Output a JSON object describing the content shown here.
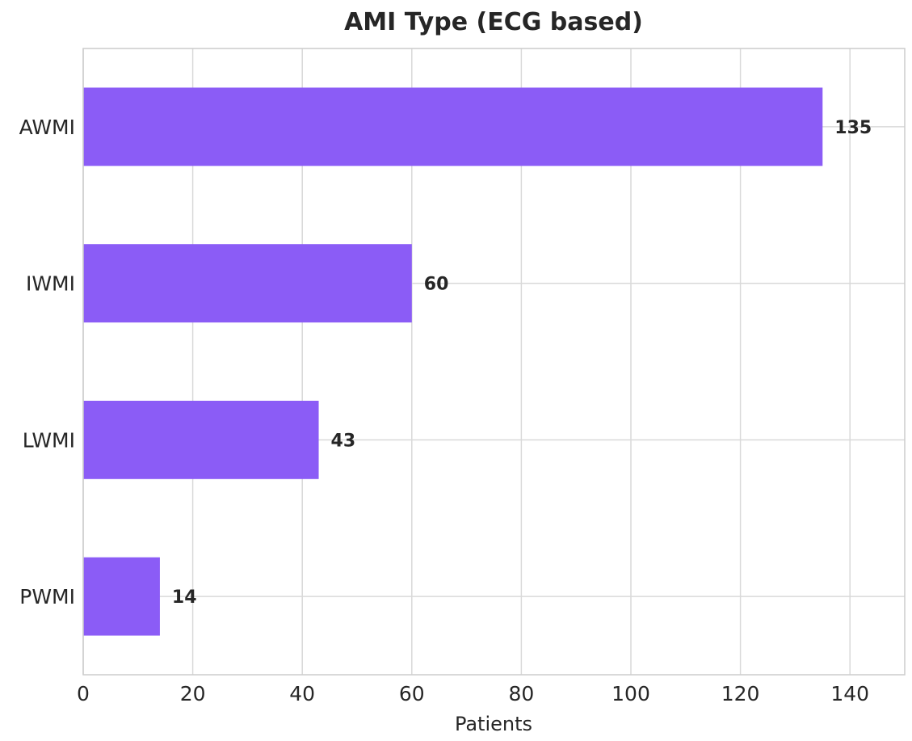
{
  "chart_data": {
    "type": "bar",
    "orientation": "horizontal",
    "title": "AMI Type (ECG based)",
    "xlabel": "Patients",
    "ylabel": "",
    "categories": [
      "AWMI",
      "IWMI",
      "LWMI",
      "PWMI"
    ],
    "values": [
      135,
      60,
      43,
      14
    ],
    "data_labels": [
      "135",
      "60",
      "43",
      "14"
    ],
    "xlim": [
      0,
      150
    ],
    "x_ticks": [
      0,
      20,
      40,
      60,
      80,
      100,
      120,
      140
    ],
    "x_tick_labels": [
      "0",
      "20",
      "40",
      "60",
      "80",
      "100",
      "120",
      "140"
    ],
    "grid": true,
    "bar_color": "#8b5cf6"
  }
}
